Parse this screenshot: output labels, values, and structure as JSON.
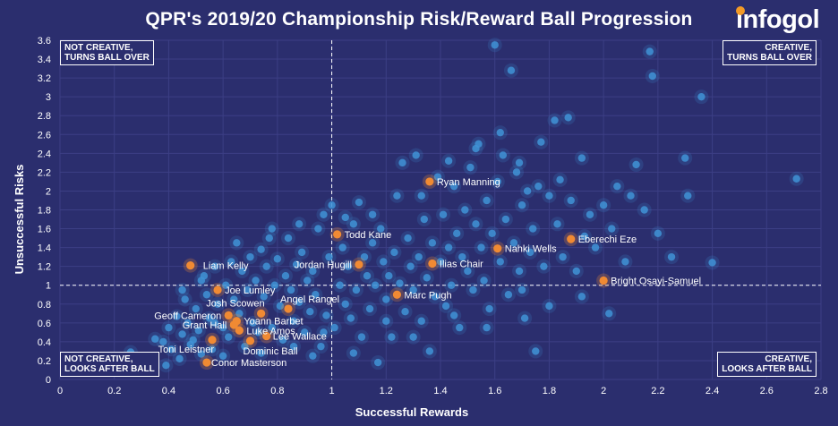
{
  "title": "QPR's 2019/20 Championship Risk/Reward Ball Progression",
  "logo_text": "infogol",
  "quadrants": {
    "top_left": [
      "NOT CREATIVE,",
      "TURNS BALL OVER"
    ],
    "top_right": [
      "CREATIVE,",
      "TURNS BALL OVER"
    ],
    "bottom_left": [
      "NOT CREATIVE,",
      "LOOKS AFTER BALL"
    ],
    "bottom_right": [
      "CREATIVE,",
      "LOOKS AFTER BALL"
    ]
  },
  "colors": {
    "background": "#2b2e6e",
    "league_points": "#3f93d6",
    "highlight_points": "#f08a33",
    "text": "#ffffff"
  },
  "chart_data": {
    "type": "scatter",
    "title": "QPR's 2019/20 Championship Risk/Reward Ball Progression",
    "xlabel": "Successful Rewards",
    "ylabel": "Unsuccessful Risks",
    "xlim": [
      0,
      2.8
    ],
    "ylim": [
      0,
      3.6
    ],
    "xticks": [
      "0",
      "0.2",
      "0.4",
      "0.6",
      "0.8",
      "1",
      "1.2",
      "1.4",
      "1.6",
      "1.8",
      "2",
      "2.2",
      "2.4",
      "2.6",
      "2.8"
    ],
    "yticks": [
      "0",
      "0.2",
      "0.4",
      "0.6",
      "0.8",
      "1",
      "1.2",
      "1.4",
      "1.6",
      "1.8",
      "2",
      "2.2",
      "2.4",
      "2.6",
      "2.8",
      "3",
      "3.2",
      "3.4",
      "3.6"
    ],
    "reference_lines": {
      "x": 1,
      "y": 1
    },
    "grid": true,
    "highlighted": [
      {
        "name": "Ryan Manning",
        "x": 1.36,
        "y": 2.1
      },
      {
        "name": "Todd Kane",
        "x": 1.02,
        "y": 1.54
      },
      {
        "name": "Eberechi Eze",
        "x": 1.88,
        "y": 1.49
      },
      {
        "name": "Nahki Wells",
        "x": 1.61,
        "y": 1.39
      },
      {
        "name": "Liam Kelly",
        "x": 0.48,
        "y": 1.21
      },
      {
        "name": "Jordan Hugill",
        "x": 1.1,
        "y": 1.22
      },
      {
        "name": "Ilias Chair",
        "x": 1.37,
        "y": 1.23
      },
      {
        "name": "Bright Osayi-Samuel",
        "x": 2.0,
        "y": 1.05
      },
      {
        "name": "Joe Lumley",
        "x": 0.58,
        "y": 0.95
      },
      {
        "name": "Marc Pugh",
        "x": 1.24,
        "y": 0.9
      },
      {
        "name": "Angel Rangel",
        "x": 0.84,
        "y": 0.75
      },
      {
        "name": "Josh Scowen",
        "x": 0.74,
        "y": 0.7
      },
      {
        "name": "Geoff Cameron",
        "x": 0.62,
        "y": 0.68
      },
      {
        "name": "Yoann Barbet",
        "x": 0.65,
        "y": 0.62
      },
      {
        "name": "Grant Hall",
        "x": 0.64,
        "y": 0.58
      },
      {
        "name": "Luke Amos",
        "x": 0.66,
        "y": 0.52
      },
      {
        "name": "Lee Wallace",
        "x": 0.76,
        "y": 0.46
      },
      {
        "name": "Toni Leistner",
        "x": 0.56,
        "y": 0.42
      },
      {
        "name": "Dominic Ball",
        "x": 0.7,
        "y": 0.41
      },
      {
        "name": "Conor Masterson",
        "x": 0.54,
        "y": 0.18
      }
    ],
    "league": [
      {
        "x": 0.26,
        "y": 0.29
      },
      {
        "x": 0.35,
        "y": 0.43
      },
      {
        "x": 0.38,
        "y": 0.4
      },
      {
        "x": 0.4,
        "y": 0.55
      },
      {
        "x": 0.41,
        "y": 0.32
      },
      {
        "x": 0.43,
        "y": 0.67
      },
      {
        "x": 0.44,
        "y": 0.22
      },
      {
        "x": 0.45,
        "y": 0.48
      },
      {
        "x": 0.46,
        "y": 0.85
      },
      {
        "x": 0.47,
        "y": 0.6
      },
      {
        "x": 0.48,
        "y": 0.37
      },
      {
        "x": 0.5,
        "y": 0.75
      },
      {
        "x": 0.51,
        "y": 0.52
      },
      {
        "x": 0.52,
        "y": 0.27
      },
      {
        "x": 0.53,
        "y": 1.1
      },
      {
        "x": 0.54,
        "y": 0.9
      },
      {
        "x": 0.55,
        "y": 0.65
      },
      {
        "x": 0.56,
        "y": 0.32
      },
      {
        "x": 0.57,
        "y": 1.2
      },
      {
        "x": 0.58,
        "y": 0.8
      },
      {
        "x": 0.6,
        "y": 0.55
      },
      {
        "x": 0.61,
        "y": 1.0
      },
      {
        "x": 0.62,
        "y": 0.45
      },
      {
        "x": 0.63,
        "y": 1.25
      },
      {
        "x": 0.64,
        "y": 0.85
      },
      {
        "x": 0.66,
        "y": 0.7
      },
      {
        "x": 0.67,
        "y": 1.15
      },
      {
        "x": 0.68,
        "y": 0.35
      },
      {
        "x": 0.69,
        "y": 0.95
      },
      {
        "x": 0.7,
        "y": 1.3
      },
      {
        "x": 0.71,
        "y": 0.6
      },
      {
        "x": 0.72,
        "y": 1.05
      },
      {
        "x": 0.73,
        "y": 0.5
      },
      {
        "x": 0.74,
        "y": 1.38
      },
      {
        "x": 0.75,
        "y": 0.88
      },
      {
        "x": 0.76,
        "y": 1.2
      },
      {
        "x": 0.77,
        "y": 1.5
      },
      {
        "x": 0.78,
        "y": 0.55
      },
      {
        "x": 0.79,
        "y": 1.0
      },
      {
        "x": 0.8,
        "y": 1.28
      },
      {
        "x": 0.81,
        "y": 0.78
      },
      {
        "x": 0.82,
        "y": 0.42
      },
      {
        "x": 0.83,
        "y": 1.1
      },
      {
        "x": 0.84,
        "y": 1.5
      },
      {
        "x": 0.85,
        "y": 0.95
      },
      {
        "x": 0.86,
        "y": 0.62
      },
      {
        "x": 0.87,
        "y": 1.22
      },
      {
        "x": 0.88,
        "y": 0.82
      },
      {
        "x": 0.89,
        "y": 1.35
      },
      {
        "x": 0.9,
        "y": 0.5
      },
      {
        "x": 0.91,
        "y": 1.05
      },
      {
        "x": 0.92,
        "y": 0.72
      },
      {
        "x": 0.93,
        "y": 1.15
      },
      {
        "x": 0.94,
        "y": 0.9
      },
      {
        "x": 0.95,
        "y": 1.6
      },
      {
        "x": 0.96,
        "y": 0.35
      },
      {
        "x": 0.97,
        "y": 1.75
      },
      {
        "x": 0.98,
        "y": 0.68
      },
      {
        "x": 0.99,
        "y": 1.3
      },
      {
        "x": 1.0,
        "y": 1.85
      },
      {
        "x": 1.01,
        "y": 0.55
      },
      {
        "x": 1.03,
        "y": 1.0
      },
      {
        "x": 1.04,
        "y": 1.4
      },
      {
        "x": 1.05,
        "y": 0.8
      },
      {
        "x": 1.06,
        "y": 1.2
      },
      {
        "x": 1.07,
        "y": 0.65
      },
      {
        "x": 1.08,
        "y": 1.65
      },
      {
        "x": 1.09,
        "y": 0.95
      },
      {
        "x": 1.1,
        "y": 1.88
      },
      {
        "x": 1.11,
        "y": 0.45
      },
      {
        "x": 1.12,
        "y": 1.3
      },
      {
        "x": 1.13,
        "y": 1.1
      },
      {
        "x": 1.14,
        "y": 0.75
      },
      {
        "x": 1.15,
        "y": 1.45
      },
      {
        "x": 1.16,
        "y": 1.0
      },
      {
        "x": 1.17,
        "y": 0.18
      },
      {
        "x": 1.18,
        "y": 1.6
      },
      {
        "x": 1.19,
        "y": 1.25
      },
      {
        "x": 1.2,
        "y": 0.85
      },
      {
        "x": 1.21,
        "y": 1.1
      },
      {
        "x": 1.22,
        "y": 0.45
      },
      {
        "x": 1.23,
        "y": 1.35
      },
      {
        "x": 1.25,
        "y": 1.02
      },
      {
        "x": 1.26,
        "y": 2.3
      },
      {
        "x": 1.27,
        "y": 0.72
      },
      {
        "x": 1.28,
        "y": 1.5
      },
      {
        "x": 1.29,
        "y": 1.2
      },
      {
        "x": 1.3,
        "y": 0.95
      },
      {
        "x": 1.31,
        "y": 2.38
      },
      {
        "x": 1.32,
        "y": 1.3
      },
      {
        "x": 1.33,
        "y": 0.62
      },
      {
        "x": 1.34,
        "y": 1.7
      },
      {
        "x": 1.35,
        "y": 1.08
      },
      {
        "x": 1.36,
        "y": 0.3
      },
      {
        "x": 1.37,
        "y": 1.45
      },
      {
        "x": 1.38,
        "y": 0.88
      },
      {
        "x": 1.39,
        "y": 2.15
      },
      {
        "x": 1.4,
        "y": 1.25
      },
      {
        "x": 1.41,
        "y": 1.75
      },
      {
        "x": 1.42,
        "y": 0.78
      },
      {
        "x": 1.43,
        "y": 1.4
      },
      {
        "x": 1.44,
        "y": 1.0
      },
      {
        "x": 1.45,
        "y": 2.05
      },
      {
        "x": 1.46,
        "y": 1.55
      },
      {
        "x": 1.47,
        "y": 0.55
      },
      {
        "x": 1.48,
        "y": 1.3
      },
      {
        "x": 1.49,
        "y": 1.8
      },
      {
        "x": 1.5,
        "y": 1.15
      },
      {
        "x": 1.51,
        "y": 2.25
      },
      {
        "x": 1.52,
        "y": 0.95
      },
      {
        "x": 1.53,
        "y": 1.65
      },
      {
        "x": 1.54,
        "y": 2.5
      },
      {
        "x": 1.55,
        "y": 1.4
      },
      {
        "x": 1.56,
        "y": 1.05
      },
      {
        "x": 1.57,
        "y": 1.9
      },
      {
        "x": 1.58,
        "y": 0.75
      },
      {
        "x": 1.59,
        "y": 1.55
      },
      {
        "x": 1.6,
        "y": 3.55
      },
      {
        "x": 1.61,
        "y": 2.1
      },
      {
        "x": 1.62,
        "y": 1.25
      },
      {
        "x": 1.63,
        "y": 2.38
      },
      {
        "x": 1.64,
        "y": 1.7
      },
      {
        "x": 1.65,
        "y": 0.9
      },
      {
        "x": 1.66,
        "y": 3.28
      },
      {
        "x": 1.67,
        "y": 1.45
      },
      {
        "x": 1.68,
        "y": 2.2
      },
      {
        "x": 1.69,
        "y": 1.15
      },
      {
        "x": 1.7,
        "y": 1.85
      },
      {
        "x": 1.71,
        "y": 0.65
      },
      {
        "x": 1.72,
        "y": 2.0
      },
      {
        "x": 1.73,
        "y": 1.35
      },
      {
        "x": 1.74,
        "y": 1.6
      },
      {
        "x": 1.75,
        "y": 0.3
      },
      {
        "x": 1.76,
        "y": 2.05
      },
      {
        "x": 1.78,
        "y": 1.2
      },
      {
        "x": 1.8,
        "y": 1.95
      },
      {
        "x": 1.82,
        "y": 2.75
      },
      {
        "x": 1.83,
        "y": 1.65
      },
      {
        "x": 1.85,
        "y": 1.3
      },
      {
        "x": 1.87,
        "y": 2.78
      },
      {
        "x": 1.88,
        "y": 1.9
      },
      {
        "x": 1.9,
        "y": 1.15
      },
      {
        "x": 1.92,
        "y": 2.35
      },
      {
        "x": 1.95,
        "y": 1.75
      },
      {
        "x": 1.97,
        "y": 1.4
      },
      {
        "x": 2.0,
        "y": 1.85
      },
      {
        "x": 2.02,
        "y": 0.7
      },
      {
        "x": 2.05,
        "y": 2.05
      },
      {
        "x": 2.08,
        "y": 1.25
      },
      {
        "x": 2.1,
        "y": 1.95
      },
      {
        "x": 2.12,
        "y": 2.28
      },
      {
        "x": 2.15,
        "y": 1.8
      },
      {
        "x": 2.17,
        "y": 3.48
      },
      {
        "x": 2.18,
        "y": 3.22
      },
      {
        "x": 2.2,
        "y": 1.55
      },
      {
        "x": 2.25,
        "y": 1.3
      },
      {
        "x": 2.3,
        "y": 2.35
      },
      {
        "x": 2.31,
        "y": 1.95
      },
      {
        "x": 2.36,
        "y": 3.0
      },
      {
        "x": 2.4,
        "y": 1.24
      },
      {
        "x": 2.71,
        "y": 2.13
      },
      {
        "x": 0.45,
        "y": 0.95
      },
      {
        "x": 0.52,
        "y": 1.05
      },
      {
        "x": 0.6,
        "y": 0.25
      },
      {
        "x": 0.65,
        "y": 1.45
      },
      {
        "x": 0.78,
        "y": 1.6
      },
      {
        "x": 0.88,
        "y": 1.65
      },
      {
        "x": 0.93,
        "y": 0.25
      },
      {
        "x": 1.05,
        "y": 1.72
      },
      {
        "x": 1.15,
        "y": 1.75
      },
      {
        "x": 1.24,
        "y": 1.95
      },
      {
        "x": 1.33,
        "y": 1.95
      },
      {
        "x": 1.43,
        "y": 2.32
      },
      {
        "x": 1.53,
        "y": 2.45
      },
      {
        "x": 1.62,
        "y": 2.62
      },
      {
        "x": 1.69,
        "y": 2.3
      },
      {
        "x": 1.77,
        "y": 2.52
      },
      {
        "x": 1.84,
        "y": 2.12
      },
      {
        "x": 1.93,
        "y": 1.52
      },
      {
        "x": 2.03,
        "y": 1.6
      },
      {
        "x": 0.39,
        "y": 0.15
      },
      {
        "x": 0.49,
        "y": 0.42
      },
      {
        "x": 0.57,
        "y": 0.6
      },
      {
        "x": 0.74,
        "y": 0.28
      },
      {
        "x": 0.86,
        "y": 0.35
      },
      {
        "x": 0.97,
        "y": 0.5
      },
      {
        "x": 1.08,
        "y": 0.28
      },
      {
        "x": 1.2,
        "y": 0.62
      },
      {
        "x": 1.3,
        "y": 0.45
      },
      {
        "x": 1.45,
        "y": 0.68
      },
      {
        "x": 1.57,
        "y": 0.55
      },
      {
        "x": 1.7,
        "y": 0.95
      },
      {
        "x": 1.8,
        "y": 0.78
      },
      {
        "x": 1.92,
        "y": 0.88
      }
    ]
  }
}
